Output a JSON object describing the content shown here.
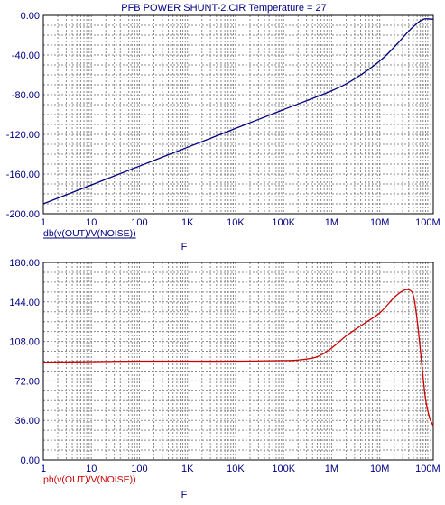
{
  "title": "PFB POWER SHUNT-2.CIR Temperature = 27",
  "colors": {
    "frame": "#000000",
    "grid": "#8a8a8a",
    "label_text": "#000080",
    "magnitude_trace": "#000080",
    "phase_trace": "#cc0000"
  },
  "chart_data": [
    {
      "type": "line",
      "xscale": "log",
      "x_variable": "F",
      "xlim": [
        1,
        130000000
      ],
      "x_tick_values": [
        1,
        10,
        100,
        1000,
        10000,
        100000,
        1000000,
        10000000,
        100000000
      ],
      "x_tick_labels": [
        "1",
        "10",
        "100",
        "1K",
        "10K",
        "100K",
        "1M",
        "10M",
        "100M"
      ],
      "ylim": [
        -200,
        0
      ],
      "y_tick_values": [
        0,
        -40,
        -80,
        -120,
        -160,
        -200
      ],
      "y_tick_labels": [
        "0.00",
        "-40.00",
        "-80.00",
        "-120.00",
        "-160.00",
        "-200.00"
      ],
      "grid": true,
      "series": [
        {
          "name": "db(v(OUT)/V(NOISE))",
          "color": "#000080",
          "x": [
            1,
            10,
            100,
            1000,
            10000,
            100000,
            1000000,
            3000000,
            10000000,
            20000000,
            40000000,
            60000000,
            80000000,
            100000000,
            130000000
          ],
          "y": [
            -190,
            -171,
            -152,
            -133,
            -114,
            -95,
            -76,
            -64,
            -46,
            -32,
            -16,
            -8,
            -4,
            -3.5,
            -4
          ]
        }
      ]
    },
    {
      "type": "line",
      "xscale": "log",
      "x_variable": "F",
      "xlim": [
        1,
        130000000
      ],
      "x_tick_values": [
        1,
        10,
        100,
        1000,
        10000,
        100000,
        1000000,
        10000000,
        100000000
      ],
      "x_tick_labels": [
        "1",
        "10",
        "100",
        "1K",
        "10K",
        "100K",
        "1M",
        "10M",
        "100M"
      ],
      "ylim": [
        0,
        180
      ],
      "y_tick_values": [
        180,
        144,
        108,
        72,
        36,
        0
      ],
      "y_tick_labels": [
        "180.00",
        "144.00",
        "108.00",
        "72.00",
        "36.00",
        "0.00"
      ],
      "grid": true,
      "series": [
        {
          "name": "ph(v(OUT)/V(NOISE))",
          "color": "#cc0000",
          "x": [
            1,
            10,
            100,
            1000,
            10000,
            100000,
            200000,
            500000,
            1000000,
            2000000,
            5000000,
            10000000,
            20000000,
            30000000,
            40000000,
            50000000,
            60000000,
            70000000,
            80000000,
            90000000,
            100000000,
            110000000,
            120000000,
            130000000
          ],
          "y": [
            89,
            89.5,
            90,
            90,
            90,
            90.5,
            91,
            94,
            102,
            113,
            125,
            134,
            148,
            154,
            155,
            150,
            128,
            100,
            75,
            55,
            45,
            38,
            34,
            31
          ]
        }
      ]
    }
  ]
}
